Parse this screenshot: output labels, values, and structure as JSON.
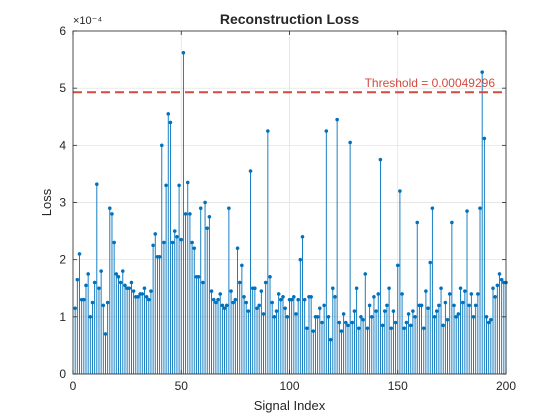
{
  "chart_data": {
    "type": "stem",
    "title": "Reconstruction Loss",
    "xlabel": "Signal Index",
    "ylabel": "Loss",
    "y_exponent_label": "×10⁻⁴",
    "xlim": [
      0,
      200
    ],
    "ylim": [
      0,
      6
    ],
    "xticks": [
      0,
      50,
      100,
      150,
      200
    ],
    "yticks": [
      0,
      1,
      2,
      3,
      4,
      5,
      6
    ],
    "grid": true,
    "series": [
      {
        "color": "#0072bd",
        "values": [
          1.15,
          1.65,
          2.1,
          1.3,
          1.3,
          1.55,
          1.75,
          1.0,
          1.25,
          1.6,
          3.32,
          1.5,
          1.8,
          1.2,
          0.7,
          1.25,
          2.9,
          2.8,
          2.3,
          1.75,
          1.7,
          1.6,
          1.8,
          1.55,
          1.5,
          1.5,
          1.6,
          1.45,
          1.35,
          1.35,
          1.4,
          1.4,
          1.5,
          1.35,
          1.3,
          1.45,
          2.25,
          2.45,
          2.05,
          2.05,
          4.0,
          2.3,
          3.3,
          4.55,
          4.4,
          2.3,
          2.5,
          2.4,
          3.3,
          2.35,
          5.62,
          2.8,
          3.35,
          2.8,
          2.3,
          2.2,
          1.7,
          1.7,
          2.9,
          1.6,
          3.0,
          2.55,
          2.75,
          1.45,
          1.3,
          1.25,
          1.3,
          1.4,
          1.2,
          1.15,
          1.2,
          2.9,
          1.45,
          1.25,
          1.3,
          2.2,
          1.6,
          1.9,
          1.35,
          1.25,
          1.1,
          3.55,
          1.5,
          1.5,
          1.15,
          1.2,
          1.45,
          1.05,
          1.6,
          4.25,
          1.7,
          1.25,
          1.0,
          1.1,
          1.4,
          1.3,
          1.35,
          1.15,
          1.0,
          1.3,
          1.3,
          1.35,
          1.05,
          1.3,
          2.0,
          2.4,
          1.3,
          0.8,
          1.35,
          1.35,
          0.75,
          1.0,
          1.0,
          1.15,
          0.9,
          1.2,
          4.25,
          1.0,
          0.6,
          1.5,
          1.35,
          4.45,
          0.9,
          0.75,
          1.05,
          0.9,
          0.85,
          4.05,
          0.9,
          1.1,
          1.5,
          0.8,
          1.0,
          0.95,
          1.75,
          0.8,
          1.2,
          1.0,
          1.35,
          1.1,
          1.4,
          3.75,
          0.85,
          1.1,
          1.2,
          1.5,
          0.8,
          1.1,
          0.9,
          1.9,
          3.2,
          1.4,
          0.8,
          0.9,
          1.05,
          0.85,
          1.1,
          1.0,
          2.65,
          1.2,
          1.2,
          0.8,
          1.45,
          1.15,
          1.95,
          2.9,
          1.0,
          1.1,
          1.2,
          1.5,
          0.85,
          1.25,
          0.95,
          1.4,
          2.65,
          1.2,
          1.0,
          1.05,
          1.5,
          1.25,
          1.45,
          2.85,
          1.2,
          1.4,
          1.0,
          1.2,
          1.4,
          2.9,
          5.28,
          4.12,
          1.0,
          0.9,
          0.95,
          1.5,
          1.35,
          1.55,
          1.75,
          1.65,
          1.6,
          1.6
        ]
      }
    ],
    "threshold": {
      "value": 4.9296,
      "label": "Threshold = 0.00049296",
      "color": "#d14b40",
      "style": "dashed"
    }
  }
}
